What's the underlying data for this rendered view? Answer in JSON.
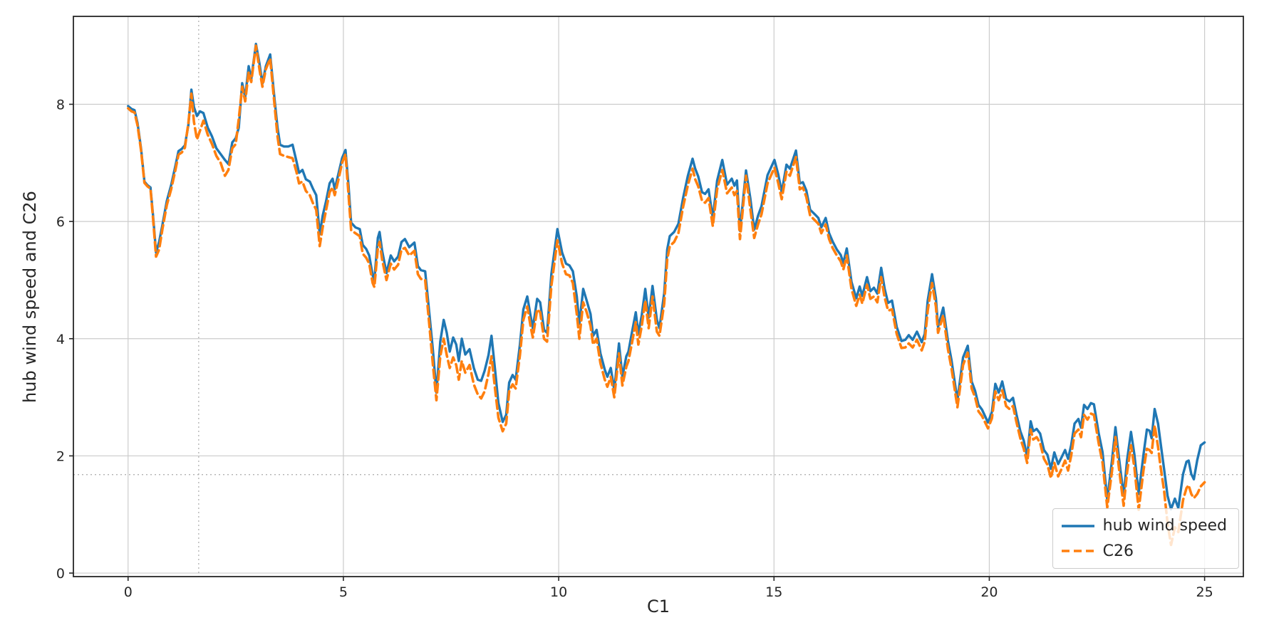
{
  "figure": {
    "xlabel": "C1",
    "ylabel": "hub wind speed and C26",
    "background": "#ffffff",
    "spine_color": "#262626",
    "tick_color": "#262626"
  },
  "chart_data": {
    "type": "line",
    "title": "",
    "xlabel": "C1",
    "ylabel": "hub wind speed and C26",
    "xlim": [
      -1.27,
      25.9
    ],
    "ylim": [
      -0.06,
      9.5
    ],
    "xticks": [
      0,
      5,
      10,
      15,
      20,
      25
    ],
    "yticks": [
      0,
      2,
      4,
      6,
      8
    ],
    "grid": true,
    "grid_color": "#cccccc",
    "reference_lines": {
      "x": 1.64,
      "y": 1.68,
      "style": "dotted",
      "color": "#aaaaaa"
    },
    "legend_position": "lower right",
    "x": [
      0,
      0.08,
      0.15,
      0.22,
      0.3,
      0.38,
      0.45,
      0.52,
      0.58,
      0.65,
      0.72,
      0.8,
      0.9,
      1.0,
      1.1,
      1.17,
      1.25,
      1.32,
      1.4,
      1.47,
      1.53,
      1.6,
      1.67,
      1.75,
      1.85,
      1.95,
      2.05,
      2.15,
      2.25,
      2.33,
      2.42,
      2.5,
      2.57,
      2.65,
      2.72,
      2.8,
      2.86,
      2.97,
      3.05,
      3.12,
      3.2,
      3.3,
      3.4,
      3.47,
      3.53,
      3.62,
      3.72,
      3.82,
      3.91,
      3.97,
      4.05,
      4.13,
      4.22,
      4.3,
      4.37,
      4.45,
      4.52,
      4.6,
      4.68,
      4.75,
      4.8,
      4.88,
      4.97,
      5.05,
      5.12,
      5.18,
      5.28,
      5.38,
      5.45,
      5.53,
      5.6,
      5.68,
      5.72,
      5.8,
      5.84,
      5.9,
      6.0,
      6.1,
      6.18,
      6.27,
      6.35,
      6.43,
      6.53,
      6.65,
      6.73,
      6.8,
      6.9,
      7.0,
      7.08,
      7.16,
      7.25,
      7.33,
      7.4,
      7.47,
      7.55,
      7.62,
      7.68,
      7.75,
      7.83,
      7.93,
      8.03,
      8.12,
      8.2,
      8.28,
      8.37,
      8.44,
      8.52,
      8.6,
      8.7,
      8.78,
      8.85,
      8.93,
      9.0,
      9.1,
      9.18,
      9.27,
      9.35,
      9.4,
      9.5,
      9.57,
      9.66,
      9.73,
      9.83,
      9.97,
      10.08,
      10.17,
      10.25,
      10.33,
      10.42,
      10.48,
      10.57,
      10.65,
      10.74,
      10.8,
      10.88,
      10.97,
      11.07,
      11.13,
      11.21,
      11.29,
      11.4,
      11.48,
      11.57,
      11.62,
      11.7,
      11.79,
      11.85,
      11.93,
      12.01,
      12.09,
      12.18,
      12.28,
      12.34,
      12.45,
      12.52,
      12.58,
      12.68,
      12.78,
      12.89,
      13.0,
      13.11,
      13.17,
      13.24,
      13.33,
      13.4,
      13.48,
      13.58,
      13.68,
      13.8,
      13.91,
      14.02,
      14.08,
      14.14,
      14.21,
      14.35,
      14.45,
      14.54,
      14.63,
      14.71,
      14.85,
      15.01,
      15.1,
      15.18,
      15.29,
      15.37,
      15.51,
      15.6,
      15.67,
      15.75,
      15.84,
      15.95,
      16.03,
      16.1,
      16.2,
      16.28,
      16.36,
      16.46,
      16.55,
      16.61,
      16.69,
      16.8,
      16.91,
      16.99,
      17.05,
      17.16,
      17.24,
      17.32,
      17.4,
      17.49,
      17.57,
      17.65,
      17.74,
      17.85,
      17.96,
      18.05,
      18.13,
      18.22,
      18.32,
      18.43,
      18.5,
      18.57,
      18.67,
      18.76,
      18.81,
      18.93,
      19.04,
      19.12,
      19.26,
      19.39,
      19.5,
      19.59,
      19.67,
      19.75,
      19.83,
      19.97,
      20.06,
      20.14,
      20.22,
      20.3,
      20.39,
      20.47,
      20.55,
      20.63,
      20.72,
      20.8,
      20.88,
      20.96,
      21.02,
      21.1,
      21.18,
      21.27,
      21.35,
      21.43,
      21.51,
      21.6,
      21.68,
      21.76,
      21.83,
      21.9,
      21.98,
      22.07,
      22.13,
      22.2,
      22.28,
      22.36,
      22.43,
      22.54,
      22.63,
      22.74,
      22.85,
      22.93,
      23.01,
      23.12,
      23.2,
      23.29,
      23.37,
      23.47,
      23.58,
      23.66,
      23.72,
      23.77,
      23.84,
      23.92,
      23.97,
      24.06,
      24.14,
      24.22,
      24.31,
      24.39,
      24.5,
      24.58,
      24.63,
      24.69,
      24.75,
      24.83,
      24.91,
      25.0
    ],
    "series": [
      {
        "name": "hub wind speed",
        "color": "#1f77b4",
        "style": "solid",
        "values": [
          7.97,
          7.92,
          7.9,
          7.68,
          7.25,
          6.68,
          6.62,
          6.58,
          6.1,
          5.47,
          5.65,
          5.95,
          6.35,
          6.62,
          6.95,
          7.2,
          7.24,
          7.3,
          7.65,
          8.25,
          7.95,
          7.8,
          7.88,
          7.85,
          7.6,
          7.45,
          7.25,
          7.15,
          7.05,
          6.98,
          7.35,
          7.42,
          7.6,
          8.36,
          8.12,
          8.65,
          8.43,
          9.03,
          8.7,
          8.35,
          8.65,
          8.85,
          8.1,
          7.6,
          7.31,
          7.28,
          7.28,
          7.31,
          7.03,
          6.83,
          6.88,
          6.72,
          6.68,
          6.55,
          6.45,
          5.78,
          6.1,
          6.35,
          6.65,
          6.73,
          6.55,
          6.8,
          7.08,
          7.22,
          6.6,
          5.98,
          5.9,
          5.87,
          5.6,
          5.53,
          5.42,
          5.08,
          5.0,
          5.72,
          5.82,
          5.5,
          5.12,
          5.42,
          5.32,
          5.4,
          5.65,
          5.7,
          5.56,
          5.64,
          5.24,
          5.17,
          5.15,
          4.4,
          3.8,
          3.08,
          3.95,
          4.32,
          4.1,
          3.78,
          4.02,
          3.9,
          3.62,
          4.0,
          3.73,
          3.82,
          3.5,
          3.3,
          3.28,
          3.45,
          3.72,
          4.05,
          3.48,
          2.9,
          2.58,
          2.7,
          3.25,
          3.38,
          3.3,
          3.9,
          4.5,
          4.72,
          4.38,
          4.18,
          4.68,
          4.62,
          4.15,
          4.1,
          5.1,
          5.87,
          5.47,
          5.28,
          5.25,
          5.15,
          4.72,
          4.25,
          4.85,
          4.65,
          4.42,
          4.05,
          4.15,
          3.75,
          3.47,
          3.35,
          3.5,
          3.12,
          3.92,
          3.35,
          3.7,
          3.78,
          4.1,
          4.45,
          4.08,
          4.4,
          4.85,
          4.36,
          4.9,
          4.32,
          4.18,
          4.78,
          5.52,
          5.75,
          5.82,
          5.96,
          6.4,
          6.78,
          7.07,
          6.9,
          6.77,
          6.5,
          6.47,
          6.55,
          6.06,
          6.7,
          7.05,
          6.63,
          6.73,
          6.61,
          6.7,
          5.84,
          6.87,
          6.4,
          5.86,
          6.1,
          6.26,
          6.79,
          7.05,
          6.8,
          6.5,
          6.97,
          6.9,
          7.21,
          6.65,
          6.67,
          6.53,
          6.2,
          6.12,
          6.06,
          5.9,
          6.06,
          5.8,
          5.66,
          5.52,
          5.43,
          5.29,
          5.54,
          4.97,
          4.69,
          4.89,
          4.73,
          5.05,
          4.81,
          4.87,
          4.77,
          5.21,
          4.85,
          4.61,
          4.65,
          4.2,
          3.96,
          3.98,
          4.06,
          3.98,
          4.12,
          3.94,
          4.08,
          4.65,
          5.1,
          4.69,
          4.2,
          4.53,
          3.96,
          3.64,
          2.95,
          3.68,
          3.88,
          3.27,
          3.11,
          2.87,
          2.79,
          2.57,
          2.75,
          3.23,
          3.08,
          3.27,
          2.97,
          2.93,
          2.99,
          2.71,
          2.42,
          2.26,
          1.98,
          2.59,
          2.42,
          2.46,
          2.38,
          2.1,
          2.02,
          1.78,
          2.06,
          1.86,
          1.98,
          2.1,
          1.95,
          2.18,
          2.55,
          2.63,
          2.48,
          2.87,
          2.8,
          2.9,
          2.88,
          2.39,
          2.06,
          1.25,
          1.93,
          2.49,
          1.98,
          1.32,
          1.93,
          2.41,
          2.02,
          1.35,
          2.02,
          2.45,
          2.43,
          2.3,
          2.8,
          2.55,
          2.26,
          1.77,
          1.32,
          1.09,
          1.27,
          1.11,
          1.69,
          1.9,
          1.92,
          1.69,
          1.6,
          1.93,
          2.18,
          2.23
        ]
      },
      {
        "name": "C26",
        "color": "#ff7f0e",
        "style": "dashed",
        "values": [
          7.93,
          7.88,
          7.86,
          7.64,
          7.22,
          6.66,
          6.6,
          6.56,
          6.05,
          5.4,
          5.52,
          5.88,
          6.28,
          6.55,
          6.88,
          7.14,
          7.18,
          7.26,
          7.68,
          8.18,
          7.7,
          7.4,
          7.55,
          7.72,
          7.48,
          7.32,
          7.12,
          7.0,
          6.78,
          6.88,
          7.25,
          7.32,
          7.75,
          8.3,
          8.05,
          8.55,
          8.38,
          9.0,
          8.6,
          8.3,
          8.6,
          8.78,
          8.0,
          7.45,
          7.15,
          7.12,
          7.1,
          7.08,
          6.85,
          6.65,
          6.68,
          6.52,
          6.45,
          6.3,
          6.2,
          5.58,
          5.9,
          6.2,
          6.5,
          6.58,
          6.45,
          6.7,
          7.0,
          7.15,
          6.45,
          5.85,
          5.8,
          5.75,
          5.45,
          5.38,
          5.28,
          4.95,
          4.88,
          5.55,
          5.65,
          5.35,
          5.0,
          5.28,
          5.18,
          5.26,
          5.52,
          5.55,
          5.42,
          5.5,
          5.1,
          5.02,
          5.0,
          4.2,
          3.55,
          2.95,
          3.7,
          4.0,
          3.72,
          3.5,
          3.68,
          3.55,
          3.3,
          3.62,
          3.42,
          3.55,
          3.22,
          3.05,
          2.98,
          3.1,
          3.4,
          3.7,
          3.15,
          2.65,
          2.42,
          2.55,
          3.1,
          3.22,
          3.15,
          3.72,
          4.32,
          4.55,
          4.2,
          4.02,
          4.5,
          4.45,
          4.0,
          3.95,
          4.9,
          5.68,
          5.28,
          5.1,
          5.08,
          4.95,
          4.42,
          4.0,
          4.62,
          4.45,
          4.22,
          3.9,
          4.0,
          3.58,
          3.3,
          3.18,
          3.35,
          3.0,
          3.75,
          3.2,
          3.52,
          3.62,
          3.92,
          4.28,
          3.9,
          4.22,
          4.65,
          4.18,
          4.72,
          4.12,
          4.05,
          4.6,
          5.35,
          5.58,
          5.65,
          5.8,
          6.25,
          6.62,
          6.9,
          6.72,
          6.6,
          6.35,
          6.32,
          6.4,
          5.92,
          6.55,
          6.88,
          6.48,
          6.58,
          6.45,
          6.52,
          5.7,
          6.78,
          6.22,
          5.72,
          5.95,
          6.12,
          6.65,
          6.92,
          6.65,
          6.38,
          6.85,
          6.78,
          7.1,
          6.55,
          6.58,
          6.42,
          6.1,
          6.02,
          5.96,
          5.8,
          5.95,
          5.7,
          5.55,
          5.42,
          5.32,
          5.18,
          5.42,
          4.85,
          4.56,
          4.75,
          4.6,
          4.92,
          4.68,
          4.72,
          4.62,
          5.05,
          4.7,
          4.48,
          4.5,
          4.08,
          3.84,
          3.85,
          3.92,
          3.85,
          3.98,
          3.8,
          3.95,
          4.48,
          4.95,
          4.55,
          4.1,
          4.4,
          3.82,
          3.5,
          2.83,
          3.55,
          3.76,
          3.15,
          3.0,
          2.76,
          2.68,
          2.47,
          2.64,
          3.1,
          2.95,
          3.12,
          2.85,
          2.8,
          2.85,
          2.58,
          2.3,
          2.12,
          1.88,
          2.45,
          2.28,
          2.32,
          2.22,
          1.95,
          1.85,
          1.62,
          1.88,
          1.65,
          1.78,
          1.92,
          1.75,
          2.0,
          2.38,
          2.45,
          2.32,
          2.7,
          2.62,
          2.72,
          2.7,
          2.22,
          1.88,
          1.12,
          1.75,
          2.32,
          1.8,
          1.15,
          1.72,
          2.18,
          1.8,
          1.08,
          1.75,
          2.12,
          2.1,
          2.05,
          2.52,
          2.15,
          1.85,
          1.4,
          0.85,
          0.48,
          0.78,
          0.7,
          1.25,
          1.45,
          1.5,
          1.35,
          1.28,
          1.35,
          1.48,
          1.55
        ]
      }
    ]
  }
}
